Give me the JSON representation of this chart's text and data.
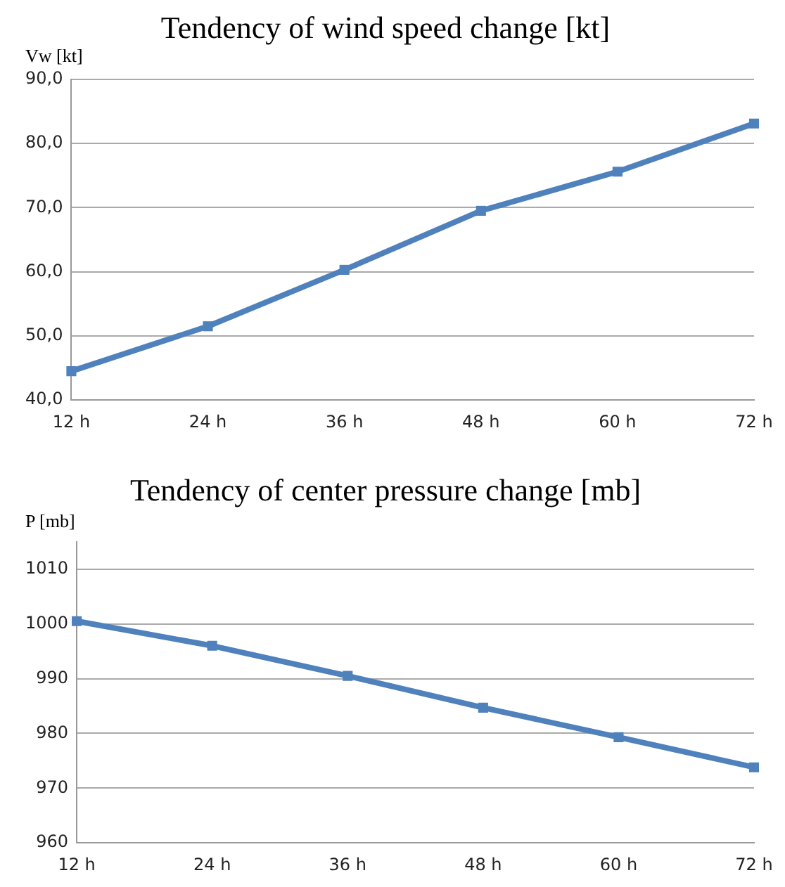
{
  "chart_data": [
    {
      "type": "line",
      "title": "Tendency of wind speed change [kt]",
      "ylabel": "Vw [kt]",
      "categories": [
        "12 h",
        "24 h",
        "36 h",
        "48 h",
        "60 h",
        "72 h"
      ],
      "series": [
        {
          "color": "#4f81bd",
          "values": [
            44.5,
            51.5,
            60.3,
            69.5,
            75.6,
            83.1
          ]
        }
      ],
      "ylim": [
        40,
        90
      ],
      "yticks": [
        {
          "value": 40,
          "label": "40,0"
        },
        {
          "value": 50,
          "label": "50,0"
        },
        {
          "value": 60,
          "label": "60,0"
        },
        {
          "value": 70,
          "label": "70,0"
        },
        {
          "value": 80,
          "label": "80,0"
        },
        {
          "value": 90,
          "label": "90,0"
        }
      ],
      "grid": "y",
      "legend": false,
      "marker": "square",
      "line_style": "solid"
    },
    {
      "type": "line",
      "title": "Tendency of center pressure change [mb]",
      "ylabel": "P [mb]",
      "categories": [
        "12 h",
        "24 h",
        "36 h",
        "48 h",
        "60 h",
        "72 h"
      ],
      "series": [
        {
          "color": "#4f81bd",
          "values": [
            1000.5,
            996,
            990.5,
            984.7,
            979.3,
            973.8
          ]
        }
      ],
      "ylim": [
        960,
        1015
      ],
      "yticks": [
        960,
        970,
        980,
        990,
        1000,
        1010
      ],
      "grid": "y",
      "legend": false,
      "marker": "square",
      "line_style": "solid"
    }
  ]
}
